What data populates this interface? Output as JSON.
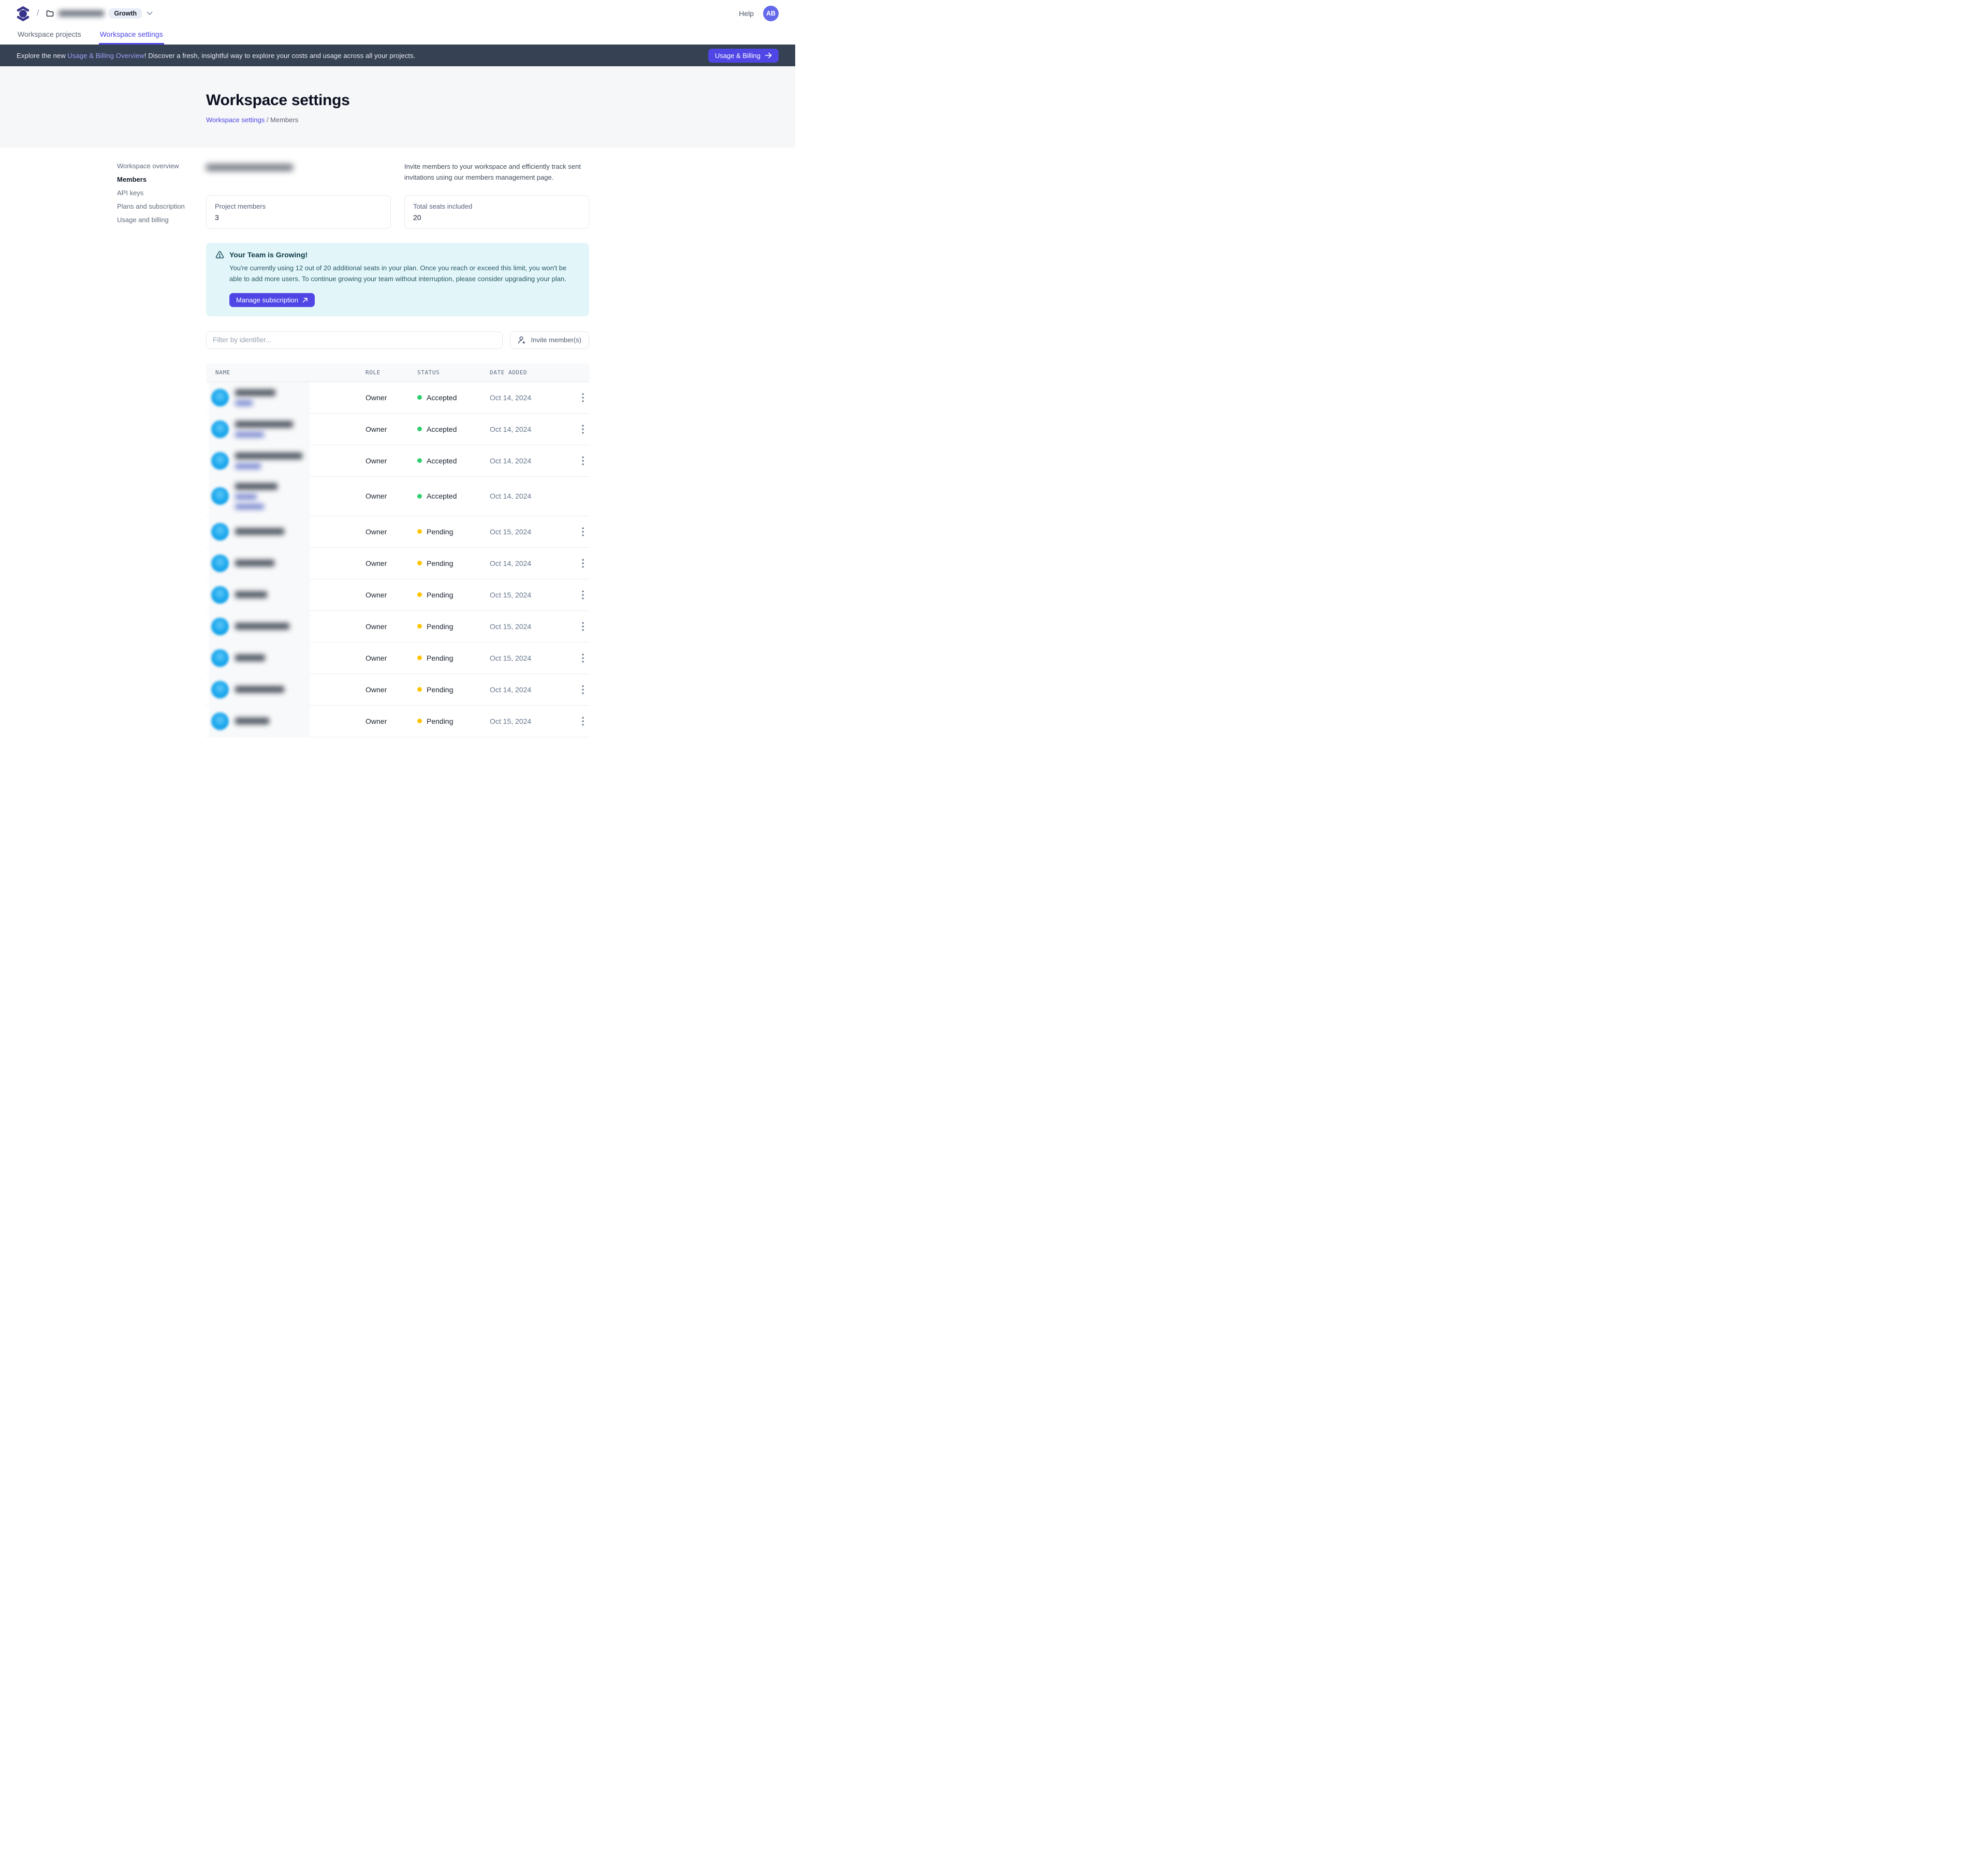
{
  "colors": {
    "accent": "#4f46e5",
    "banner_bg": "#364153",
    "alert_bg": "#e2f6f9",
    "avatar_blue": "#18a6ec",
    "status": {
      "Accepted": "#2fce6f",
      "Pending": "#ffc400"
    }
  },
  "topbar": {
    "crumb_slash": "/",
    "workspace_badge": "Growth",
    "help_label": "Help",
    "avatar_initials": "AB"
  },
  "tabs": [
    {
      "label": "Workspace projects",
      "active": false
    },
    {
      "label": "Workspace settings",
      "active": true
    }
  ],
  "banner": {
    "text_before": "Explore the new ",
    "link_text": "Usage & Billing Overview",
    "text_after": "! Discover a fresh, insightful way to explore your costs and usage across all your projects.",
    "button_label": "Usage & Billing"
  },
  "hero": {
    "title": "Workspace settings",
    "breadcrumb_link": "Workspace settings",
    "breadcrumb_rest": " / Members"
  },
  "sidebar": {
    "items": [
      {
        "label": "Workspace overview",
        "active": false
      },
      {
        "label": "Members",
        "active": true
      },
      {
        "label": "API keys",
        "active": false
      },
      {
        "label": "Plans and subscription",
        "active": false
      },
      {
        "label": "Usage and billing",
        "active": false
      }
    ]
  },
  "members_section": {
    "title_redacted": true,
    "description": "Invite members to your workspace and efficiently track sent invitations using our members management page.",
    "stats": [
      {
        "label": "Project members",
        "value": "3"
      },
      {
        "label": "Total seats included",
        "value": "20"
      }
    ],
    "alert": {
      "title": "Your Team is Growing!",
      "body": "You're currently using 12 out of 20 additional seats in your plan. Once you reach or exceed this limit, you won't be able to add more users. To continue growing your team without interruption, please consider upgrading your plan.",
      "button_label": "Manage subscription"
    },
    "filter_placeholder": "Filter by identifier...",
    "invite_button_label": "Invite member(s)"
  },
  "table": {
    "columns": [
      "NAME",
      "ROLE",
      "STATUS",
      "DATE ADDED"
    ],
    "rows": [
      {
        "redacted": true,
        "email_w": 78,
        "sub_w": [
          34
        ],
        "role": "Owner",
        "status": "Accepted",
        "date": "Oct 14, 2024",
        "menu": true
      },
      {
        "redacted": true,
        "email_w": 112,
        "sub_w": [
          56
        ],
        "role": "Owner",
        "status": "Accepted",
        "date": "Oct 14, 2024",
        "menu": true
      },
      {
        "redacted": true,
        "email_w": 130,
        "sub_w": [
          50
        ],
        "role": "Owner",
        "status": "Accepted",
        "date": "Oct 14, 2024",
        "menu": true
      },
      {
        "redacted": true,
        "email_w": 82,
        "sub_w": [
          42,
          56
        ],
        "role": "Owner",
        "status": "Accepted",
        "date": "Oct 14, 2024",
        "menu": false,
        "tall": true
      },
      {
        "redacted": true,
        "email_w": 95,
        "sub_w": [],
        "role": "Owner",
        "status": "Pending",
        "date": "Oct 15, 2024",
        "menu": true
      },
      {
        "redacted": true,
        "email_w": 76,
        "sub_w": [],
        "role": "Owner",
        "status": "Pending",
        "date": "Oct 14, 2024",
        "menu": true
      },
      {
        "redacted": true,
        "email_w": 62,
        "sub_w": [],
        "role": "Owner",
        "status": "Pending",
        "date": "Oct 15, 2024",
        "menu": true
      },
      {
        "redacted": true,
        "email_w": 105,
        "sub_w": [],
        "role": "Owner",
        "status": "Pending",
        "date": "Oct 15, 2024",
        "menu": true
      },
      {
        "redacted": true,
        "email_w": 58,
        "sub_w": [],
        "role": "Owner",
        "status": "Pending",
        "date": "Oct 15, 2024",
        "menu": true
      },
      {
        "redacted": true,
        "email_w": 95,
        "sub_w": [],
        "role": "Owner",
        "status": "Pending",
        "date": "Oct 14, 2024",
        "menu": true
      },
      {
        "redacted": true,
        "email_w": 66,
        "sub_w": [],
        "role": "Owner",
        "status": "Pending",
        "date": "Oct 15, 2024",
        "menu": true
      }
    ]
  }
}
